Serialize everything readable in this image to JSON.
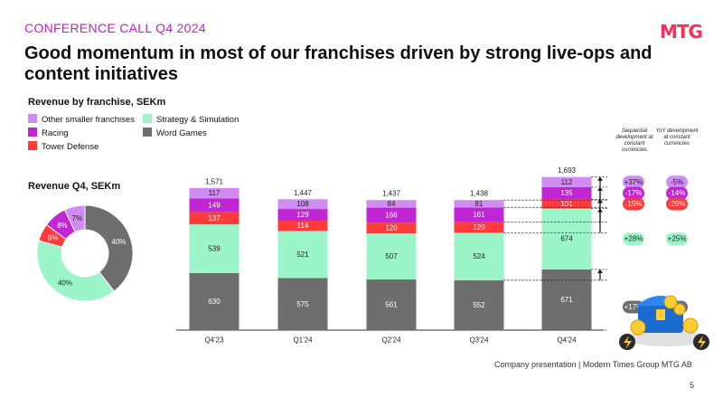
{
  "header": {
    "kicker": "CONFERENCE CALL Q4 2024",
    "logo": "MTG",
    "title": "Good momentum in most of our franchises driven by strong live-ops and content initiatives"
  },
  "colors": {
    "other": "#d08cf0",
    "racing": "#c026d3",
    "tower": "#ff3b3b",
    "strategy": "#9bf5c8",
    "word": "#6e6e6e",
    "accent": "#c81ad6",
    "logo": "#ff2d55"
  },
  "legend": [
    {
      "label": "Other smaller franchises",
      "color": "#d08cf0"
    },
    {
      "label": "Strategy & Simulation",
      "color": "#9bf5c8"
    },
    {
      "label": "Racing",
      "color": "#c026d3"
    },
    {
      "label": "Word Games",
      "color": "#6e6e6e"
    },
    {
      "label": "Tower Defense",
      "color": "#ff3b3b"
    }
  ],
  "chart_data": [
    {
      "type": "bar",
      "stacked": true,
      "title": "Revenue by franchise, SEKm",
      "categories": [
        "Q4'23",
        "Q1'24",
        "Q2'24",
        "Q3'24",
        "Q4'24"
      ],
      "totals": [
        "1,571",
        "1,447",
        "1,437",
        "1,438",
        "1,693"
      ],
      "series": [
        {
          "name": "Word Games",
          "color": "#6e6e6e",
          "values": [
            630,
            575,
            561,
            552,
            671
          ]
        },
        {
          "name": "Strategy & Simulation",
          "color": "#9bf5c8",
          "values": [
            539,
            521,
            507,
            524,
            674
          ]
        },
        {
          "name": "Tower Defense",
          "color": "#ff3b3b",
          "values": [
            137,
            114,
            120,
            120,
            101
          ]
        },
        {
          "name": "Racing",
          "color": "#c026d3",
          "values": [
            149,
            129,
            166,
            161,
            135
          ]
        },
        {
          "name": "Other smaller franchises",
          "color": "#d08cf0",
          "values": [
            117,
            108,
            84,
            81,
            112
          ]
        }
      ],
      "growth": {
        "headers": [
          "Sequential development at constant currencies",
          "YoY development at constant currencies"
        ],
        "rows": [
          {
            "series": "Other smaller franchises",
            "seq": "+37%",
            "yoy": "-5%"
          },
          {
            "series": "Racing",
            "seq": "-17%",
            "yoy": "-14%"
          },
          {
            "series": "Tower Defense",
            "seq": "-15%",
            "yoy": "-25%"
          },
          {
            "series": "Strategy & Simulation",
            "seq": "+28%",
            "yoy": "+25%"
          },
          {
            "series": "Word Games",
            "seq": "+17%",
            "yoy": "+4%"
          }
        ]
      }
    },
    {
      "type": "pie",
      "donut": true,
      "title": "Revenue Q4, SEKm",
      "slices": [
        {
          "label": "40%",
          "value": 40,
          "color": "#6e6e6e"
        },
        {
          "label": "40%",
          "value": 40,
          "color": "#9bf5c8"
        },
        {
          "label": "6%",
          "value": 6,
          "color": "#ff3b3b"
        },
        {
          "label": "8%",
          "value": 8,
          "color": "#c026d3"
        },
        {
          "label": "7%",
          "value": 7,
          "color": "#d08cf0"
        }
      ]
    }
  ],
  "footer": {
    "text": "Company presentation | Modern Times Group MTG AB",
    "page": "5"
  }
}
